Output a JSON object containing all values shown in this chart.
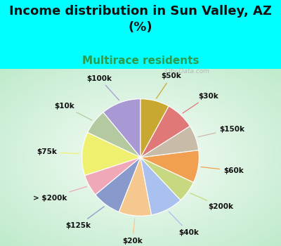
{
  "title": "Income distribution in Sun Valley, AZ\n(%)",
  "subtitle": "Multirace residents",
  "title_fontsize": 13,
  "subtitle_fontsize": 11,
  "title_color": "#111111",
  "subtitle_color": "#2a9d4e",
  "background_top": "#00ffff",
  "watermark": "City-Data.com",
  "labels": [
    "$100k",
    "$10k",
    "$75k",
    "> $200k",
    "$125k",
    "$20k",
    "$40k",
    "$200k",
    "$60k",
    "$150k",
    "$30k",
    "$50k"
  ],
  "values": [
    11,
    7,
    12,
    6,
    8,
    9,
    9,
    6,
    9,
    7,
    8,
    8
  ],
  "colors": [
    "#a899d4",
    "#b5c9a0",
    "#f0f070",
    "#f0a8b8",
    "#8899cc",
    "#f5c890",
    "#aac0ee",
    "#c8d880",
    "#f0a050",
    "#c8bba8",
    "#e07878",
    "#c8a830"
  ],
  "label_fontsize": 7.5,
  "label_color": "#111111"
}
